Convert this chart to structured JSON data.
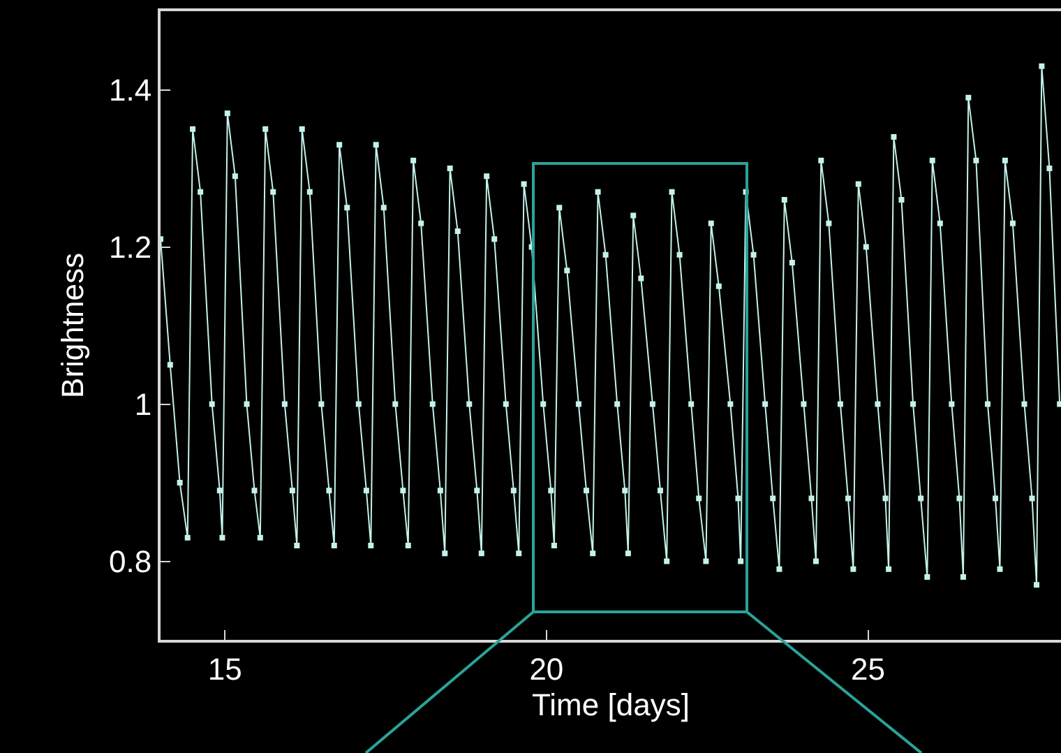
{
  "chart_data": {
    "type": "line",
    "xlabel": "Time [days]",
    "ylabel": "Brightness",
    "xlim": [
      14,
      28
    ],
    "xticks": [
      15,
      20,
      25
    ],
    "ylim": [
      0.7,
      1.5
    ],
    "yticks": [
      0.8,
      1,
      1.2,
      1.4
    ],
    "marker": "square",
    "line_style": "solid",
    "series": [
      {
        "color": "#c4f2ea",
        "x": [
          14.0,
          14.15,
          14.3,
          14.42,
          14.5,
          14.62,
          14.8,
          14.92,
          14.96,
          15.04,
          15.16,
          15.34,
          15.46,
          15.55,
          15.63,
          15.75,
          15.93,
          16.05,
          16.12,
          16.2,
          16.32,
          16.5,
          16.62,
          16.7,
          16.78,
          16.9,
          17.08,
          17.2,
          17.27,
          17.35,
          17.47,
          17.65,
          17.77,
          17.85,
          17.93,
          18.05,
          18.23,
          18.35,
          18.42,
          18.5,
          18.62,
          18.8,
          18.92,
          18.99,
          19.07,
          19.19,
          19.37,
          19.49,
          19.57,
          19.65,
          19.77,
          19.95,
          20.07,
          20.12,
          20.2,
          20.32,
          20.5,
          20.62,
          20.72,
          20.8,
          20.92,
          21.1,
          21.22,
          21.27,
          21.35,
          21.47,
          21.65,
          21.77,
          21.87,
          21.95,
          22.07,
          22.25,
          22.37,
          22.48,
          22.56,
          22.68,
          22.86,
          22.98,
          23.02,
          23.1,
          23.22,
          23.4,
          23.52,
          23.62,
          23.7,
          23.82,
          24.0,
          24.12,
          24.19,
          24.27,
          24.39,
          24.57,
          24.69,
          24.77,
          24.85,
          24.97,
          25.15,
          25.27,
          25.32,
          25.4,
          25.52,
          25.7,
          25.82,
          25.92,
          26.0,
          26.12,
          26.3,
          26.42,
          26.48,
          26.56,
          26.68,
          26.86,
          26.98,
          27.05,
          27.13,
          27.25,
          27.43,
          27.55,
          27.62,
          27.7,
          27.82,
          27.98
        ],
        "values": [
          1.21,
          1.05,
          0.9,
          0.83,
          1.35,
          1.27,
          1.0,
          0.89,
          0.83,
          1.37,
          1.29,
          1.0,
          0.89,
          0.83,
          1.35,
          1.27,
          1.0,
          0.89,
          0.82,
          1.35,
          1.27,
          1.0,
          0.89,
          0.82,
          1.33,
          1.25,
          1.0,
          0.89,
          0.82,
          1.33,
          1.25,
          1.0,
          0.89,
          0.82,
          1.31,
          1.23,
          1.0,
          0.89,
          0.81,
          1.3,
          1.22,
          1.0,
          0.89,
          0.81,
          1.29,
          1.21,
          1.0,
          0.89,
          0.81,
          1.28,
          1.2,
          1.0,
          0.89,
          0.82,
          1.25,
          1.17,
          1.0,
          0.89,
          0.81,
          1.27,
          1.19,
          1.0,
          0.89,
          0.81,
          1.24,
          1.16,
          1.0,
          0.89,
          0.8,
          1.27,
          1.19,
          1.0,
          0.88,
          0.8,
          1.23,
          1.15,
          1.0,
          0.88,
          0.8,
          1.27,
          1.19,
          1.0,
          0.88,
          0.79,
          1.26,
          1.18,
          1.0,
          0.88,
          0.8,
          1.31,
          1.23,
          1.0,
          0.88,
          0.79,
          1.28,
          1.2,
          1.0,
          0.88,
          0.79,
          1.34,
          1.26,
          1.0,
          0.88,
          0.78,
          1.31,
          1.23,
          1.0,
          0.88,
          0.78,
          1.39,
          1.31,
          1.0,
          0.88,
          0.79,
          1.31,
          1.23,
          1.0,
          0.88,
          0.77,
          1.43,
          1.3,
          1.0
        ]
      }
    ]
  }
}
